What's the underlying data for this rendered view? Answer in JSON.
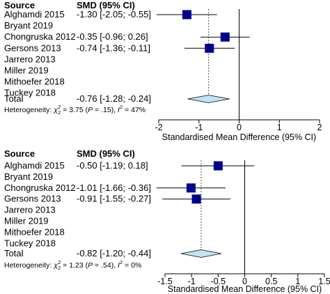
{
  "chart_data": [
    {
      "type": "forest",
      "headers": {
        "source": "Source",
        "estimate": "SMD (95% CI)"
      },
      "studies": [
        {
          "source": "Alghamdi 2015",
          "ci_text": "-1.30 [-2.05; -0.55]",
          "smd": -1.3,
          "lower": -2.05,
          "upper": -0.55
        },
        {
          "source": "Bryant 2019"
        },
        {
          "source": "Chongruska 2012",
          "ci_text": "-0.35 [-0.96;  0.26]",
          "smd": -0.35,
          "lower": -0.96,
          "upper": 0.26
        },
        {
          "source": "Gersons 2013",
          "ci_text": "-0.74 [-1.36; -0.11]",
          "smd": -0.74,
          "lower": -1.36,
          "upper": -0.11
        },
        {
          "source": "Jarrero 2013"
        },
        {
          "source": "Miller 2019"
        },
        {
          "source": "Mithoefer 2018"
        },
        {
          "source": "Tuckey 2018"
        }
      ],
      "total": {
        "label": "Total",
        "ci_text": "-0.76 [-1.28; -0.24]",
        "smd": -0.76,
        "lower": -1.28,
        "upper": -0.24
      },
      "heterogeneity": {
        "prefix": "Heterogeneity: ",
        "chi_symbol": "χ",
        "chi_sub": "2",
        "chi_sup": "2",
        "chi_value": " = 3.75 (",
        "p_symbol": "P",
        "p_value": " = .15), ",
        "i_symbol": "I",
        "i_sup": "2",
        "i_value": " = 47%"
      },
      "x_ticks": [
        -2,
        -1,
        0,
        1,
        2
      ],
      "x_tick_labels": [
        "-2",
        "-1",
        "0",
        "1",
        "2"
      ],
      "xlim": [
        -2,
        2
      ],
      "xlabel": "Standardised Mean Difference (95% CI)",
      "reference_line": 0
    },
    {
      "type": "forest",
      "headers": {
        "source": "Source",
        "estimate": "SMD (95% CI)"
      },
      "studies": [
        {
          "source": "Alghamdi 2015",
          "ci_text": "-0.50 [-1.19;  0.18]",
          "smd": -0.5,
          "lower": -1.19,
          "upper": 0.18
        },
        {
          "source": "Bryant 2019"
        },
        {
          "source": "Chongruska 2012",
          "ci_text": "-1.01 [-1.66; -0.36]",
          "smd": -1.01,
          "lower": -1.66,
          "upper": -0.36
        },
        {
          "source": "Gersons 2013",
          "ci_text": "-0.91 [-1.55; -0.27]",
          "smd": -0.91,
          "lower": -1.55,
          "upper": -0.27
        },
        {
          "source": "Jarrero 2013"
        },
        {
          "source": "Miller 2019"
        },
        {
          "source": "Mithoefer 2018"
        },
        {
          "source": "Tuckey 2018"
        }
      ],
      "total": {
        "label": "Total",
        "ci_text": "-0.82 [-1.20; -0.44]",
        "smd": -0.82,
        "lower": -1.2,
        "upper": -0.44
      },
      "heterogeneity": {
        "prefix": "Heterogeneity: ",
        "chi_symbol": "χ",
        "chi_sub": "2",
        "chi_sup": "2",
        "chi_value": " = 1.23 (",
        "p_symbol": "P",
        "p_value": " = .54), ",
        "i_symbol": "I",
        "i_sup": "2",
        "i_value": " = 0%"
      },
      "x_ticks": [
        -1.5,
        -1,
        -0.5,
        0,
        0.5,
        1,
        1.5
      ],
      "x_tick_labels": [
        "-1.5",
        "-1",
        "-0.5",
        "0",
        "0.5",
        "1",
        "1.5"
      ],
      "xlim": [
        -1.5,
        1.5
      ],
      "xlabel": "Standardised Mean Difference (95% CI)",
      "reference_line": 0
    }
  ],
  "colors": {
    "marker": "#00008b",
    "diamond_fill": "#bfe6f0",
    "line": "#000000"
  }
}
